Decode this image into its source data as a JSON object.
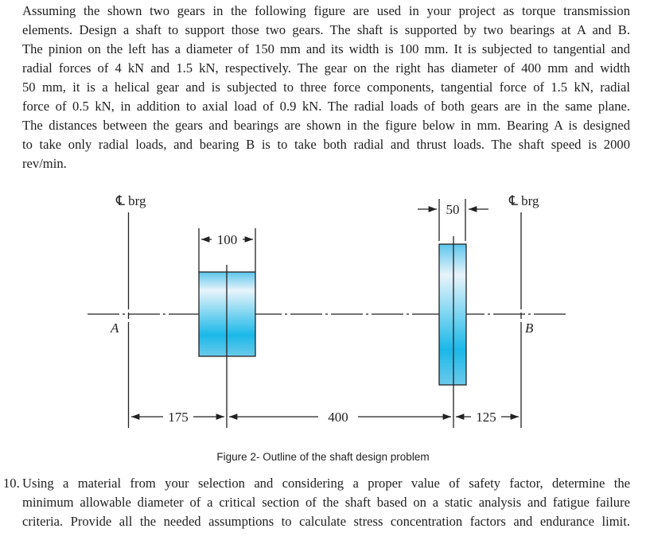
{
  "problem": {
    "lines": [
      "Assuming the shown two gears in the following figure are used in your project as torque transmission",
      "elements. Design a shaft to support those two gears. The shaft is supported by two bearings at A and B.",
      "The pinion on the left has a diameter of 150 mm and its width is 100 mm. It is subjected to tangential and",
      "radial forces of 4 kN and 1.5 kN, respectively. The gear on the right has diameter of 400 mm and width",
      "50 mm, it is a helical gear and is subjected to three force components, tangential force of 1.5 kN, radial",
      "force of 0.5 kN, in addition to axial load of 0.9 kN. The radial loads of both gears are in the same plane.",
      "The distances between the gears and bearings are shown in the figure below in mm. Bearing A is designed",
      "to take only radial loads, and bearing B is to take both radial and thrust loads. The shaft speed is 2000",
      "rev/min."
    ]
  },
  "figure": {
    "left_bearing_label": "℄ brg",
    "right_bearing_label": "℄ brg",
    "point_a": "A",
    "point_b": "B",
    "pinion_width": "100",
    "gear_width": "50",
    "dim_a_to_pinion": "175",
    "dim_pinion_to_gear": "400",
    "dim_gear_to_b": "125",
    "gear_color_top": "#e8f4fb",
    "gear_color_bottom": "#1ab8e8",
    "caption": "Figure 2- Outline of the shaft design problem"
  },
  "question": {
    "number": "10.",
    "lines": [
      "Using a material from your selection and considering a proper value of safety factor, determine the",
      "minimum allowable diameter of a critical section of the shaft based on a static analysis and fatigue failure",
      "criteria. Provide all the needed assumptions to calculate stress concentration factors and endurance limit."
    ]
  }
}
